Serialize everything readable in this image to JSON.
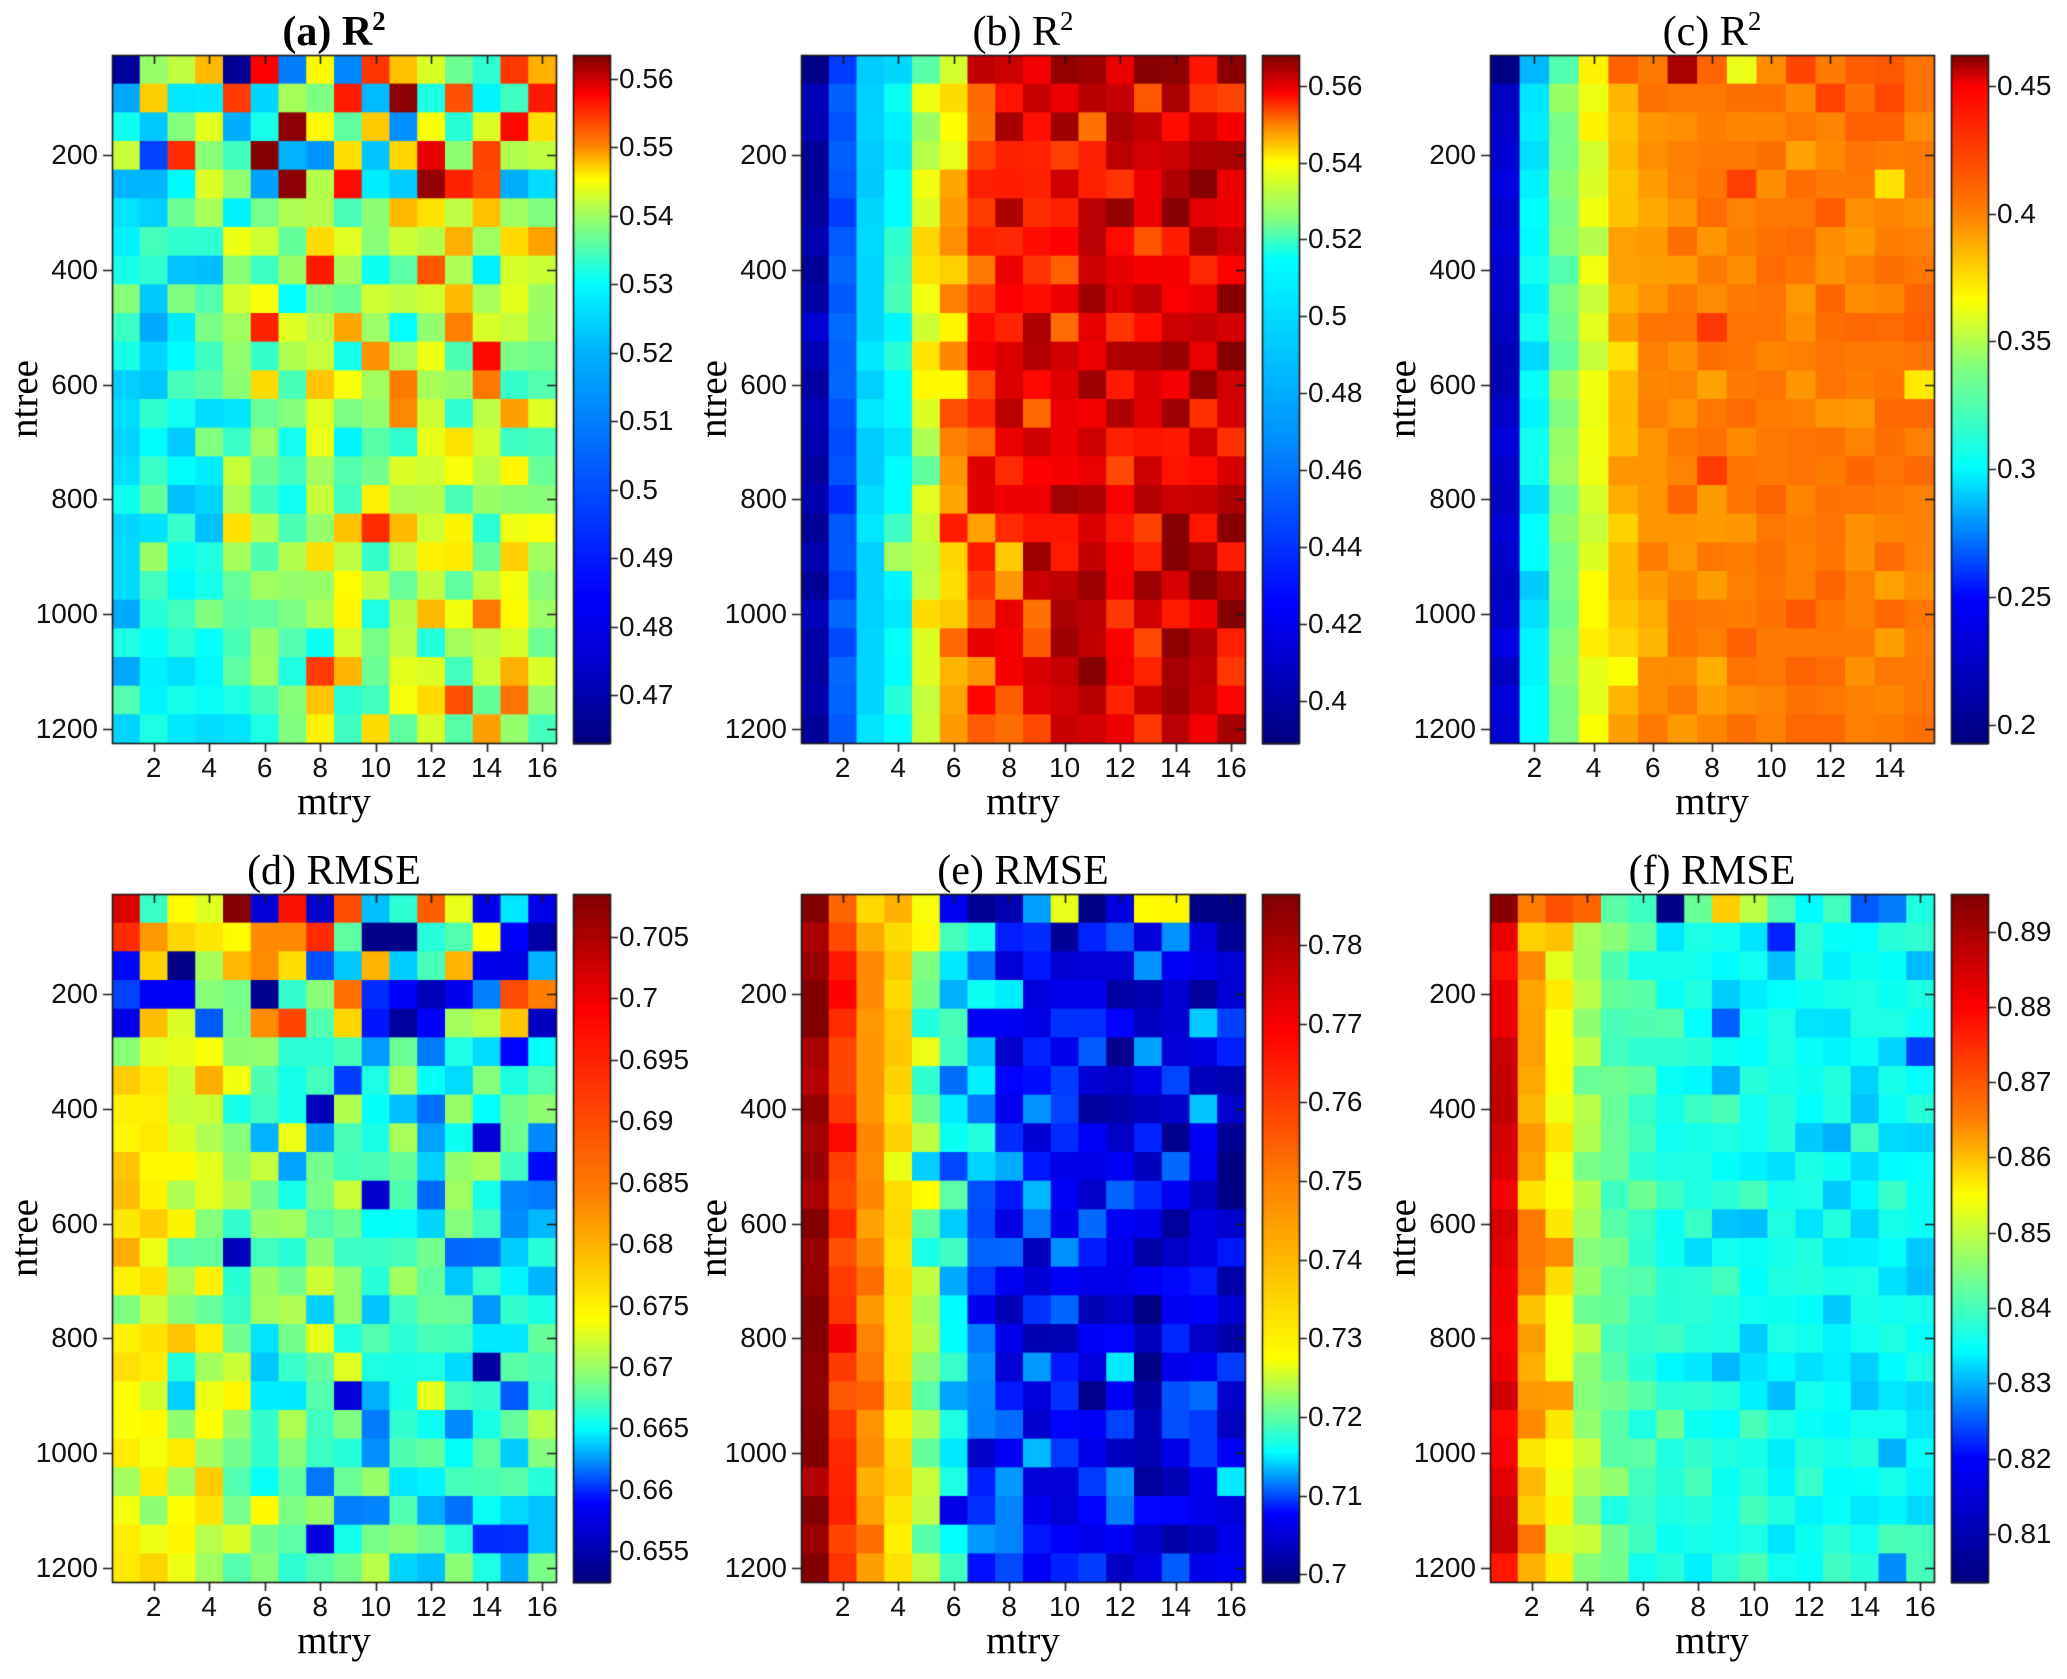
{
  "figure": {
    "background": "#ffffff",
    "layout": "2 rows x 3 columns of heatmap panels with individual colorbars",
    "colormap": "jet"
  },
  "chart_data": [
    {
      "panel": "a",
      "type": "heatmap",
      "title_prefix": "(a) R",
      "title_sup": "2",
      "title_bold": true,
      "xlabel": "mtry",
      "ylabel": "ntree",
      "x_ticks": [
        2,
        4,
        6,
        8,
        10,
        12,
        14,
        16
      ],
      "y_ticks": [
        200,
        400,
        600,
        800,
        1000,
        1200
      ],
      "n_cols": 16,
      "n_rows": 24,
      "ntree_start": 50,
      "ntree_step": 50,
      "value_range": [
        0.463,
        0.5635
      ],
      "colorbar_tick_values": [
        0.56,
        0.55,
        0.54,
        0.53,
        0.52,
        0.51,
        0.5,
        0.49,
        0.48,
        0.47
      ],
      "colorbar_tick_labels": [
        "0.56",
        "0.55",
        "0.54",
        "0.53",
        "0.52",
        "0.51",
        "0.5",
        "0.49",
        "0.48",
        "0.47"
      ],
      "colormap_anchors": [
        [
          0,
          0
        ],
        [
          0.12,
          0.08
        ],
        [
          0.37,
          0.2
        ],
        [
          0.57,
          0.3
        ],
        [
          0.67,
          0.375
        ],
        [
          0.78,
          0.55
        ],
        [
          0.82,
          0.625
        ],
        [
          0.87,
          0.75
        ],
        [
          0.945,
          0.875
        ],
        [
          1,
          1
        ]
      ],
      "col_profile": [
        0.529,
        0.53,
        0.53,
        0.532,
        0.536,
        0.538,
        0.539,
        0.54,
        0.541,
        0.541,
        0.542,
        0.542,
        0.543,
        0.543,
        0.542,
        0.542
      ],
      "noise_sd": 0.005,
      "top_noise": {
        "rows": 5,
        "sd": 0.012
      },
      "outliers": [
        [
          0,
          0,
          0.468
        ],
        [
          0,
          4,
          0.466
        ],
        [
          0,
          5,
          0.558
        ],
        [
          0,
          6,
          0.51
        ],
        [
          0,
          8,
          0.512
        ],
        [
          1,
          15,
          0.5565
        ],
        [
          3,
          2,
          0.5555
        ],
        [
          3,
          5,
          0.5632
        ],
        [
          3,
          11,
          0.559
        ],
        [
          3,
          13,
          0.554
        ],
        [
          4,
          11,
          0.5625
        ],
        [
          4,
          12,
          0.556
        ],
        [
          7,
          7,
          0.5565
        ],
        [
          9,
          5,
          0.556
        ],
        [
          10,
          13,
          0.5575
        ],
        [
          16,
          9,
          0.5555
        ],
        [
          21,
          7,
          0.5545
        ]
      ],
      "seed": 101
    },
    {
      "panel": "b",
      "type": "heatmap",
      "title_prefix": "(b) R",
      "title_sup": "2",
      "title_bold": false,
      "xlabel": "mtry",
      "ylabel": "ntree",
      "x_ticks": [
        2,
        4,
        6,
        8,
        10,
        12,
        14,
        16
      ],
      "y_ticks": [
        200,
        400,
        600,
        800,
        1000,
        1200
      ],
      "n_cols": 16,
      "n_rows": 24,
      "ntree_start": 50,
      "ntree_step": 50,
      "value_range": [
        0.389,
        0.568
      ],
      "colorbar_tick_values": [
        0.56,
        0.54,
        0.52,
        0.5,
        0.48,
        0.46,
        0.44,
        0.42,
        0.4
      ],
      "colorbar_tick_labels": [
        "0.56",
        "0.54",
        "0.52",
        "0.5",
        "0.48",
        "0.46",
        "0.44",
        "0.42",
        "0.4"
      ],
      "colormap_anchors": [
        [
          0,
          0
        ],
        [
          0.2,
          0.125
        ],
        [
          0.45,
          0.27
        ],
        [
          0.705,
          0.375
        ],
        [
          0.76,
          0.5
        ],
        [
          0.845,
          0.625
        ],
        [
          0.9,
          0.75
        ],
        [
          0.945,
          0.875
        ],
        [
          1,
          1
        ]
      ],
      "col_profile": [
        0.4,
        0.452,
        0.497,
        0.516,
        0.535,
        0.547,
        0.5535,
        0.557,
        0.559,
        0.56,
        0.56,
        0.561,
        0.56,
        0.561,
        0.561,
        0.56
      ],
      "noise_sd": 0.0045,
      "top_noise": {
        "rows": 1,
        "sd": 0.01
      },
      "outliers": [
        [
          0,
          4,
          0.522
        ],
        [
          0,
          5,
          0.535
        ],
        [
          0,
          6,
          0.563
        ],
        [
          0,
          7,
          0.562
        ],
        [
          0,
          9,
          0.5665
        ],
        [
          0,
          10,
          0.5655
        ],
        [
          0,
          15,
          0.5672
        ],
        [
          3,
          15,
          0.5645
        ],
        [
          5,
          11,
          0.5662
        ],
        [
          8,
          10,
          0.5655
        ],
        [
          12,
          13,
          0.5658
        ],
        [
          17,
          14,
          0.565
        ],
        [
          21,
          13,
          0.565
        ]
      ],
      "seed": 202
    },
    {
      "panel": "c",
      "type": "heatmap",
      "title_prefix": "(c) R",
      "title_sup": "2",
      "title_bold": false,
      "xlabel": "mtry",
      "ylabel": "ntree",
      "x_ticks": [
        2,
        4,
        6,
        8,
        10,
        12,
        14
      ],
      "y_ticks": [
        200,
        400,
        600,
        800,
        1000,
        1200
      ],
      "n_cols": 15,
      "n_rows": 24,
      "ntree_start": 50,
      "ntree_step": 50,
      "value_range": [
        0.193,
        0.462
      ],
      "colorbar_tick_values": [
        0.45,
        0.4,
        0.35,
        0.3,
        0.25,
        0.2
      ],
      "colorbar_tick_labels": [
        "0.45",
        "0.4",
        "0.35",
        "0.3",
        "0.25",
        "0.2"
      ],
      "colormap_anchors": [
        [
          0,
          0
        ],
        [
          0.21,
          0.125
        ],
        [
          0.4,
          0.375
        ],
        [
          0.546,
          0.5
        ],
        [
          0.645,
          0.625
        ],
        [
          0.77,
          0.75
        ],
        [
          0.955,
          0.875
        ],
        [
          1,
          1
        ]
      ],
      "col_profile": [
        0.228,
        0.298,
        0.343,
        0.362,
        0.383,
        0.394,
        0.399,
        0.401,
        0.402,
        0.403,
        0.403,
        0.404,
        0.403,
        0.404,
        0.403
      ],
      "noise_sd": 0.005,
      "top_noise": {
        "rows": 1,
        "sd": 0.008
      },
      "outliers": [
        [
          0,
          0,
          0.196
        ],
        [
          0,
          4,
          0.412
        ],
        [
          0,
          6,
          0.458
        ],
        [
          0,
          8,
          0.362
        ],
        [
          0,
          12,
          0.414
        ],
        [
          0,
          13,
          0.416
        ],
        [
          1,
          11,
          0.424
        ],
        [
          1,
          13,
          0.422
        ],
        [
          4,
          8,
          0.425
        ],
        [
          4,
          13,
          0.374
        ],
        [
          9,
          7,
          0.428
        ],
        [
          11,
          14,
          0.372
        ],
        [
          14,
          7,
          0.427
        ]
      ],
      "seed": 303
    },
    {
      "panel": "d",
      "type": "heatmap",
      "title_prefix": "(d) RMSE",
      "title_sup": "",
      "title_bold": false,
      "xlabel": "mtry",
      "ylabel": "ntree",
      "x_ticks": [
        2,
        4,
        6,
        8,
        10,
        12,
        14,
        16
      ],
      "y_ticks": [
        200,
        400,
        600,
        800,
        1000,
        1200
      ],
      "n_cols": 16,
      "n_rows": 24,
      "ntree_start": 50,
      "ntree_step": 50,
      "value_range": [
        0.6525,
        0.7085
      ],
      "colorbar_tick_values": [
        0.705,
        0.7,
        0.695,
        0.69,
        0.685,
        0.68,
        0.675,
        0.67,
        0.665,
        0.66,
        0.655
      ],
      "colorbar_tick_labels": [
        "0.705",
        "0.7",
        "0.695",
        "0.69",
        "0.685",
        "0.68",
        "0.675",
        "0.67",
        "0.665",
        "0.66",
        "0.655"
      ],
      "colormap_anchors": [
        [
          0,
          0
        ],
        [
          0.116,
          0.125
        ],
        [
          0.223,
          0.375
        ],
        [
          0.295,
          0.5
        ],
        [
          0.384,
          0.625
        ],
        [
          0.563,
          0.75
        ],
        [
          0.83,
          0.875
        ],
        [
          1,
          1
        ]
      ],
      "col_profile": [
        0.6745,
        0.674,
        0.6725,
        0.6715,
        0.67,
        0.6685,
        0.668,
        0.6675,
        0.667,
        0.6665,
        0.6665,
        0.666,
        0.6655,
        0.6655,
        0.6655,
        0.666
      ],
      "noise_sd": 0.003,
      "top_noise": {
        "rows": 5,
        "sd": 0.01
      },
      "outliers": [
        [
          0,
          0,
          0.7015
        ],
        [
          0,
          4,
          0.7078
        ],
        [
          0,
          5,
          0.657
        ],
        [
          0,
          6,
          0.697
        ],
        [
          0,
          8,
          0.69
        ],
        [
          0,
          11,
          0.688
        ],
        [
          1,
          14,
          0.659
        ],
        [
          1,
          15,
          0.6545
        ],
        [
          2,
          13,
          0.658
        ],
        [
          3,
          2,
          0.6585
        ],
        [
          3,
          5,
          0.6535
        ],
        [
          3,
          9,
          0.66
        ],
        [
          3,
          11,
          0.6555
        ],
        [
          4,
          6,
          0.691
        ],
        [
          4,
          9,
          0.6595
        ],
        [
          4,
          10,
          0.654
        ],
        [
          4,
          11,
          0.659
        ],
        [
          7,
          7,
          0.6555
        ],
        [
          8,
          13,
          0.657
        ],
        [
          10,
          9,
          0.6565
        ],
        [
          12,
          4,
          0.6555
        ],
        [
          17,
          8,
          0.657
        ],
        [
          20,
          3,
          0.678
        ],
        [
          22,
          7,
          0.6575
        ]
      ],
      "seed": 404
    },
    {
      "panel": "e",
      "type": "heatmap",
      "title_prefix": "(e) RMSE",
      "title_sup": "",
      "title_bold": false,
      "xlabel": "mtry",
      "ylabel": "ntree",
      "x_ticks": [
        2,
        4,
        6,
        8,
        10,
        12,
        14,
        16
      ],
      "y_ticks": [
        200,
        400,
        600,
        800,
        1000,
        1200
      ],
      "n_cols": 16,
      "n_rows": 24,
      "ntree_start": 50,
      "ntree_step": 50,
      "value_range": [
        0.699,
        0.7865
      ],
      "colorbar_tick_values": [
        0.78,
        0.77,
        0.76,
        0.75,
        0.74,
        0.73,
        0.72,
        0.71,
        0.7
      ],
      "colorbar_tick_labels": [
        "0.78",
        "0.77",
        "0.76",
        "0.75",
        "0.74",
        "0.73",
        "0.72",
        "0.71",
        "0.7"
      ],
      "colormap_anchors": [
        [
          0,
          0
        ],
        [
          0.1,
          0.125
        ],
        [
          0.189,
          0.375
        ],
        [
          0.26,
          0.5
        ],
        [
          0.326,
          0.625
        ],
        [
          0.583,
          0.75
        ],
        [
          0.8,
          0.875
        ],
        [
          1,
          1
        ]
      ],
      "col_profile": [
        0.7835,
        0.7615,
        0.748,
        0.7335,
        0.7225,
        0.7145,
        0.7105,
        0.7085,
        0.7075,
        0.707,
        0.7065,
        0.7065,
        0.706,
        0.7065,
        0.706,
        0.7065
      ],
      "noise_sd": 0.0035,
      "top_noise": {
        "rows": 1,
        "sd": 0.007
      },
      "outliers": [
        [
          0,
          6,
          0.7005
        ],
        [
          0,
          7,
          0.7025
        ],
        [
          0,
          9,
          0.7265
        ],
        [
          0,
          12,
          0.728
        ],
        [
          0,
          13,
          0.7285
        ],
        [
          0,
          15,
          0.6995
        ],
        [
          3,
          14,
          0.701
        ],
        [
          5,
          11,
          0.7002
        ],
        [
          8,
          15,
          0.7005
        ],
        [
          11,
          13,
          0.701
        ]
      ],
      "seed": 505
    },
    {
      "panel": "f",
      "type": "heatmap",
      "title_prefix": "(f) RMSE",
      "title_sup": "",
      "title_bold": false,
      "xlabel": "mtry",
      "ylabel": "ntree",
      "x_ticks": [
        2,
        4,
        6,
        8,
        10,
        12,
        14,
        16
      ],
      "y_ticks": [
        200,
        400,
        600,
        800,
        1000,
        1200
      ],
      "n_cols": 16,
      "n_rows": 24,
      "ntree_start": 50,
      "ntree_step": 50,
      "value_range": [
        0.8036,
        0.895
      ],
      "colorbar_tick_values": [
        0.89,
        0.88,
        0.87,
        0.86,
        0.85,
        0.84,
        0.83,
        0.82,
        0.81
      ],
      "colorbar_tick_labels": [
        "0.89",
        "0.88",
        "0.87",
        "0.86",
        "0.85",
        "0.84",
        "0.83",
        "0.82",
        "0.81"
      ],
      "colormap_anchors": [
        [
          0,
          0
        ],
        [
          0.18,
          0.125
        ],
        [
          0.338,
          0.375
        ],
        [
          0.453,
          0.5
        ],
        [
          0.563,
          0.625
        ],
        [
          0.672,
          0.75
        ],
        [
          0.836,
          0.875
        ],
        [
          1,
          1
        ]
      ],
      "col_profile": [
        0.8835,
        0.862,
        0.856,
        0.8475,
        0.8425,
        0.8395,
        0.8375,
        0.8365,
        0.836,
        0.8355,
        0.8355,
        0.835,
        0.835,
        0.8345,
        0.835,
        0.8355
      ],
      "noise_sd": 0.0025,
      "top_noise": {
        "rows": 1,
        "sd": 0.006
      },
      "outliers": [
        [
          0,
          0,
          0.8938
        ],
        [
          0,
          3,
          0.868
        ],
        [
          0,
          6,
          0.8045
        ],
        [
          0,
          8,
          0.859
        ],
        [
          1,
          10,
          0.822
        ],
        [
          4,
          8,
          0.8255
        ],
        [
          5,
          15,
          0.8235
        ],
        [
          23,
          0,
          0.8775
        ]
      ],
      "seed": 606
    }
  ]
}
